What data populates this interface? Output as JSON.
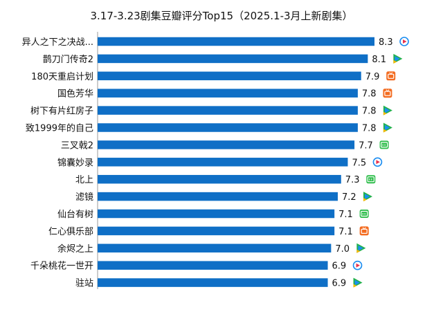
{
  "chart_data": {
    "type": "bar",
    "orientation": "horizontal",
    "title": "3.17-3.23剧集豆瓣评分Top15（2025.1-3月上新剧集）",
    "xlabel": "",
    "ylabel": "",
    "categories": [
      "异人之下之决战...",
      "鹊刀门传奇2",
      "180天重启计划",
      "国色芳华",
      "树下有片红房子",
      "致1999年的自己",
      "三叉戟2",
      "锦囊妙录",
      "北上",
      "滤镜",
      "仙台有树",
      "仁心俱乐部",
      "余烬之上",
      "千朵桃花一世开",
      "驻站"
    ],
    "values": [
      8.3,
      8.1,
      7.9,
      7.8,
      7.8,
      7.8,
      7.7,
      7.5,
      7.3,
      7.2,
      7.1,
      7.1,
      7.0,
      6.9,
      6.9
    ],
    "value_labels": [
      "8.3",
      "8.1",
      "7.9",
      "7.8",
      "7.8",
      "7.8",
      "7.7",
      "7.5",
      "7.3",
      "7.2",
      "7.1",
      "7.1",
      "7.0",
      "6.9",
      "6.9"
    ],
    "platform_icons": [
      "youku-icon",
      "tencent-video-icon",
      "mango-tv-icon",
      "mango-tv-icon",
      "tencent-video-icon",
      "tencent-video-icon",
      "iqiyi-icon",
      "youku-icon",
      "iqiyi-icon",
      "tencent-video-icon",
      "iqiyi-icon",
      "mango-tv-icon",
      "tencent-video-icon",
      "youku-icon",
      "tencent-video-icon"
    ],
    "bar_color": "#0f6fc6",
    "grid": false,
    "legend": "none"
  },
  "icon_colors": {
    "youku-icon": "#1a8cf0",
    "youku-accent": "#e8344e",
    "tencent-video-icon": "#22b14c",
    "tencent-video-accent": "#1a8ff0",
    "tencent-video-accent2": "#f5b800",
    "mango-tv-icon": "#f36c21",
    "iqiyi-icon": "#2dbd4a"
  }
}
